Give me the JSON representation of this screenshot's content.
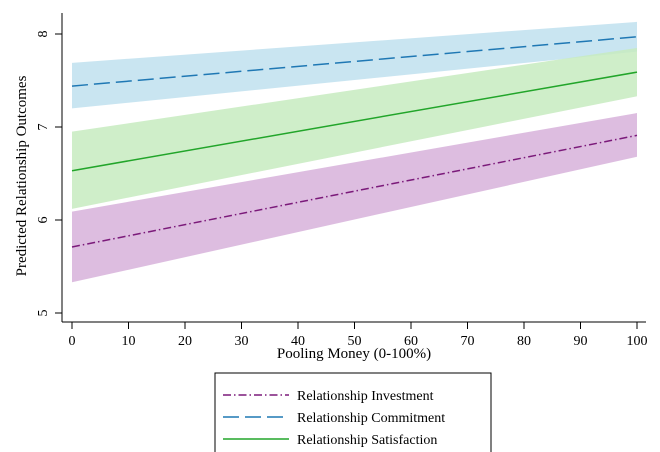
{
  "chart_data": {
    "type": "line",
    "title": "",
    "xlabel": "Pooling Money (0-100%)",
    "ylabel": "Predicted Relationship Outcomes",
    "xlim": [
      0,
      100
    ],
    "ylim": [
      5,
      8.2
    ],
    "xticks": [
      0,
      10,
      20,
      30,
      40,
      50,
      60,
      70,
      80,
      90,
      100
    ],
    "yticks": [
      5,
      6,
      7,
      8
    ],
    "grid": false,
    "legend_position": "bottom",
    "series": [
      {
        "name": "Relationship Investment",
        "color": "#7b1a7a",
        "band_color": "#d7b2da",
        "dash": "dash-dot",
        "x": [
          0,
          100
        ],
        "y": [
          5.71,
          6.91
        ],
        "ci_lower": [
          5.33,
          6.68
        ],
        "ci_upper": [
          6.09,
          7.15
        ]
      },
      {
        "name": "Relationship Commitment",
        "color": "#1f78b4",
        "band_color": "#bfe0ee",
        "dash": "long-dash",
        "x": [
          0,
          100
        ],
        "y": [
          7.44,
          7.97
        ],
        "ci_lower": [
          7.2,
          7.81
        ],
        "ci_upper": [
          7.69,
          8.13
        ]
      },
      {
        "name": "Relationship Satisfaction",
        "color": "#22a52a",
        "band_color": "#c7ebbf",
        "dash": "solid",
        "x": [
          0,
          100
        ],
        "y": [
          6.53,
          7.59
        ],
        "ci_lower": [
          6.12,
          7.33
        ],
        "ci_upper": [
          6.95,
          7.85
        ]
      }
    ]
  }
}
